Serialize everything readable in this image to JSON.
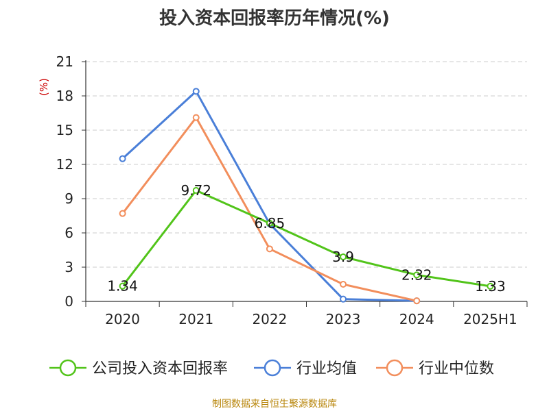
{
  "chart_data": {
    "type": "line",
    "title": "投入资本回报率历年情况(%)",
    "ylabel": "(%)",
    "xlabel": "",
    "categories": [
      "2020",
      "2021",
      "2022",
      "2023",
      "2024",
      "2025H1"
    ],
    "ylim": [
      0,
      21
    ],
    "yticks": [
      0,
      3,
      6,
      9,
      12,
      15,
      18,
      21
    ],
    "grid": true,
    "legend_position": "bottom",
    "series": [
      {
        "name": "公司投入资本回报率",
        "color": "#52c41a",
        "values": [
          1.34,
          9.72,
          6.85,
          3.9,
          2.32,
          1.33
        ],
        "labels": [
          "1.34",
          "9.72",
          "6.85",
          "3.9",
          "2.32",
          "1.33"
        ]
      },
      {
        "name": "行业均值",
        "color": "#4a7fd8",
        "values": [
          12.5,
          18.4,
          6.8,
          0.2,
          0.05,
          null
        ]
      },
      {
        "name": "行业中位数",
        "color": "#f28e5c",
        "values": [
          7.7,
          16.1,
          4.6,
          1.5,
          0.05,
          null
        ]
      }
    ]
  },
  "source": "制图数据来自恒生聚源数据库"
}
